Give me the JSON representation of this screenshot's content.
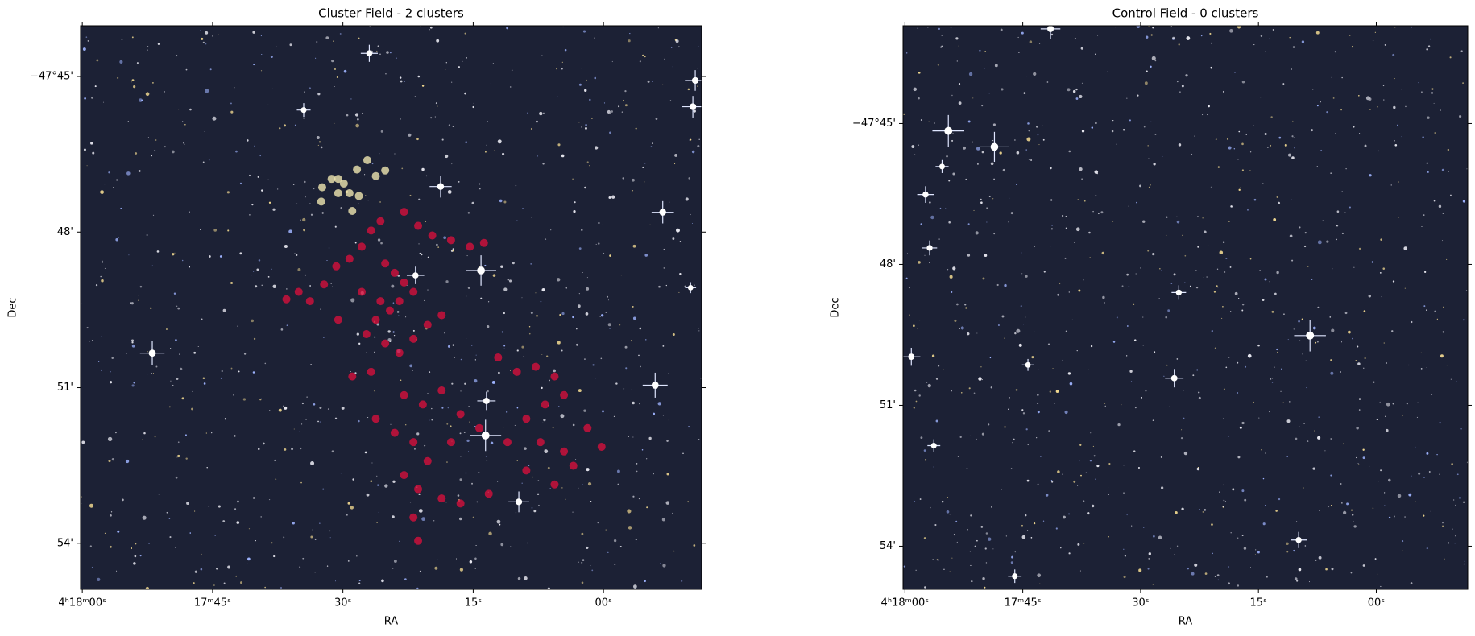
{
  "chart_data": [
    {
      "type": "scatter",
      "title": "Cluster Field - 2 clusters",
      "x_label": "RA",
      "y_label": "Dec",
      "xlim": [
        60.2,
        -11.3
      ],
      "ylim": [
        -47.7337,
        -47.9148
      ],
      "xticks": [
        {
          "value": 60,
          "label": "4ʰ18ᵐ00ˢ"
        },
        {
          "value": 45,
          "label": "17ᵐ45ˢ"
        },
        {
          "value": 30,
          "label": "30ˢ"
        },
        {
          "value": 15,
          "label": "15ˢ"
        },
        {
          "value": 0,
          "label": "00ˢ"
        }
      ],
      "yticks": [
        {
          "value": -47.75,
          "label": "−47°45'"
        },
        {
          "value": -47.8,
          "label": "48'"
        },
        {
          "value": -47.85,
          "label": "51'"
        },
        {
          "value": -47.9,
          "label": "54'"
        }
      ],
      "series": [
        {
          "color": "#d4103c",
          "x": [
            36.5,
            35.09,
            33.79,
            32.17,
            30.76,
            29.24,
            27.83,
            26.75,
            25.67,
            22.96,
            21.34,
            19.71,
            17.55,
            15.38,
            13.76,
            25.13,
            24.04,
            22.96,
            21.88,
            23.5,
            24.59,
            26.21,
            27.29,
            25.13,
            23.5,
            21.88,
            20.25,
            18.63,
            28.92,
            26.75,
            22.96,
            20.8,
            18.63,
            16.46,
            14.3,
            26.21,
            24.04,
            21.88,
            20.25,
            22.96,
            21.34,
            18.63,
            16.46,
            21.88,
            21.34,
            12.13,
            9.97,
            7.8,
            5.63,
            4.55,
            6.72,
            8.88,
            11.05,
            7.26,
            4.55,
            1.84,
            0.22,
            3.47,
            8.88,
            13.21,
            5.63,
            27.83,
            25.67,
            30.54,
            17.55
          ],
          "y": [
            -47.8216,
            -47.8192,
            -47.8222,
            -47.8168,
            -47.811,
            -47.8086,
            -47.8047,
            -47.7995,
            -47.7965,
            -47.7935,
            -47.798,
            -47.8011,
            -47.8026,
            -47.8047,
            -47.8035,
            -47.8101,
            -47.8131,
            -47.8162,
            -47.8192,
            -47.8222,
            -47.8252,
            -47.8282,
            -47.8328,
            -47.8358,
            -47.8388,
            -47.8343,
            -47.8298,
            -47.8267,
            -47.8464,
            -47.8449,
            -47.8524,
            -47.8554,
            -47.8509,
            -47.8585,
            -47.863,
            -47.86,
            -47.8645,
            -47.8675,
            -47.8736,
            -47.8781,
            -47.8826,
            -47.8856,
            -47.8872,
            -47.8917,
            -47.8992,
            -47.8403,
            -47.8449,
            -47.8433,
            -47.8464,
            -47.8524,
            -47.8554,
            -47.86,
            -47.8675,
            -47.8675,
            -47.8705,
            -47.863,
            -47.869,
            -47.8751,
            -47.8766,
            -47.8841,
            -47.8811,
            -47.8192,
            -47.8222,
            -47.8282,
            -47.8675
          ]
        },
        {
          "color": "#efe6b0",
          "x": [
            32.49,
            31.3,
            30.54,
            32.38,
            29.89,
            29.24,
            30.54,
            28.38,
            27.19,
            26.21,
            25.13,
            28.16,
            28.92
          ],
          "y": [
            -47.7902,
            -47.7829,
            -47.7829,
            -47.7856,
            -47.7844,
            -47.7875,
            -47.7875,
            -47.7799,
            -47.7769,
            -47.782,
            -47.7802,
            -47.7884,
            -47.7932
          ]
        }
      ]
    },
    {
      "type": "scatter",
      "title": "Control Field - 0 clusters",
      "x_label": "RA",
      "y_label": "Dec",
      "xlim": [
        60.24,
        -11.64
      ],
      "ylim": [
        -47.7153,
        -47.9153
      ],
      "xticks": [
        {
          "value": 60,
          "label": "4ʰ18ᵐ00ˢ"
        },
        {
          "value": 45,
          "label": "17ᵐ45ˢ"
        },
        {
          "value": 30,
          "label": "30ˢ"
        },
        {
          "value": 15,
          "label": "15ˢ"
        },
        {
          "value": 0,
          "label": "00ˢ"
        }
      ],
      "yticks": [
        {
          "value": -47.75,
          "label": "−47°45'"
        },
        {
          "value": -47.8,
          "label": "48'"
        },
        {
          "value": -47.85,
          "label": "51'"
        },
        {
          "value": -47.9,
          "label": "54'"
        }
      ],
      "series": []
    }
  ]
}
